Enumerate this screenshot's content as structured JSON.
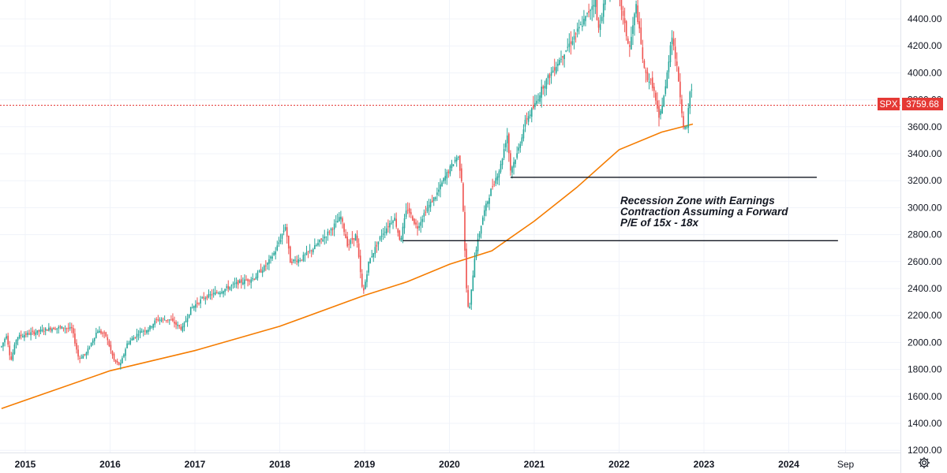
{
  "chart_data": {
    "type": "candlestick",
    "symbol": "SPX",
    "last_price": "3759.68",
    "ylim": [
      1150,
      4560
    ],
    "y_ticks": [
      "1200.00",
      "1400.00",
      "1600.00",
      "1800.00",
      "2000.00",
      "2200.00",
      "2400.00",
      "2600.00",
      "2800.00",
      "3000.00",
      "3200.00",
      "3400.00",
      "3600.00",
      "3800.00",
      "4000.00",
      "4200.00",
      "4400.00"
    ],
    "x_ticks": [
      {
        "label": "2015",
        "year": 2015.0
      },
      {
        "label": "2016",
        "year": 2016.0
      },
      {
        "label": "2017",
        "year": 2017.0
      },
      {
        "label": "2018",
        "year": 2018.0
      },
      {
        "label": "2019",
        "year": 2019.0
      },
      {
        "label": "2020",
        "year": 2020.0
      },
      {
        "label": "2021",
        "year": 2021.0
      },
      {
        "label": "2022",
        "year": 2022.0
      },
      {
        "label": "2023",
        "year": 2023.0
      },
      {
        "label": "2024",
        "year": 2024.0
      },
      {
        "label": "Sep",
        "year": 2024.67
      }
    ],
    "price_path": [
      [
        2014.72,
        1970
      ],
      [
        2014.78,
        2060
      ],
      [
        2014.83,
        1860
      ],
      [
        2014.9,
        2040
      ],
      [
        2015.0,
        2060
      ],
      [
        2015.15,
        2080
      ],
      [
        2015.3,
        2105
      ],
      [
        2015.45,
        2110
      ],
      [
        2015.55,
        2100
      ],
      [
        2015.63,
        1880
      ],
      [
        2015.72,
        1920
      ],
      [
        2015.85,
        2090
      ],
      [
        2015.95,
        2050
      ],
      [
        2016.05,
        1860
      ],
      [
        2016.12,
        1830
      ],
      [
        2016.2,
        1990
      ],
      [
        2016.35,
        2080
      ],
      [
        2016.45,
        2100
      ],
      [
        2016.55,
        2170
      ],
      [
        2016.7,
        2170
      ],
      [
        2016.85,
        2100
      ],
      [
        2016.95,
        2250
      ],
      [
        2017.1,
        2330
      ],
      [
        2017.3,
        2380
      ],
      [
        2017.5,
        2440
      ],
      [
        2017.7,
        2480
      ],
      [
        2017.85,
        2580
      ],
      [
        2017.95,
        2680
      ],
      [
        2018.07,
        2870
      ],
      [
        2018.12,
        2600
      ],
      [
        2018.25,
        2620
      ],
      [
        2018.4,
        2700
      ],
      [
        2018.55,
        2800
      ],
      [
        2018.72,
        2930
      ],
      [
        2018.8,
        2720
      ],
      [
        2018.9,
        2800
      ],
      [
        2018.98,
        2350
      ],
      [
        2019.05,
        2600
      ],
      [
        2019.2,
        2800
      ],
      [
        2019.35,
        2930
      ],
      [
        2019.42,
        2750
      ],
      [
        2019.5,
        3000
      ],
      [
        2019.62,
        2850
      ],
      [
        2019.72,
        2980
      ],
      [
        2019.85,
        3100
      ],
      [
        2019.95,
        3230
      ],
      [
        2020.1,
        3390
      ],
      [
        2020.15,
        3180
      ],
      [
        2020.2,
        2400
      ],
      [
        2020.23,
        2200
      ],
      [
        2020.3,
        2650
      ],
      [
        2020.4,
        2950
      ],
      [
        2020.5,
        3150
      ],
      [
        2020.6,
        3300
      ],
      [
        2020.68,
        3550
      ],
      [
        2020.72,
        3280
      ],
      [
        2020.8,
        3400
      ],
      [
        2020.9,
        3650
      ],
      [
        2021.0,
        3750
      ],
      [
        2021.1,
        3900
      ],
      [
        2021.3,
        4100
      ],
      [
        2021.45,
        4250
      ],
      [
        2021.6,
        4400
      ],
      [
        2021.72,
        4550
      ],
      [
        2021.75,
        4300
      ],
      [
        2021.85,
        4600
      ],
      [
        2021.95,
        4750
      ],
      [
        2022.05,
        4400
      ],
      [
        2022.12,
        4170
      ],
      [
        2022.2,
        4500
      ],
      [
        2022.3,
        4000
      ],
      [
        2022.4,
        3900
      ],
      [
        2022.47,
        3650
      ],
      [
        2022.55,
        3900
      ],
      [
        2022.62,
        4300
      ],
      [
        2022.7,
        3950
      ],
      [
        2022.76,
        3600
      ],
      [
        2022.8,
        3580
      ],
      [
        2022.83,
        3850
      ],
      [
        2022.87,
        3900
      ]
    ],
    "moving_average": {
      "color": "#f57c00",
      "points": [
        [
          2014.72,
          1510
        ],
        [
          2016.0,
          1790
        ],
        [
          2017.0,
          1940
        ],
        [
          2018.0,
          2120
        ],
        [
          2019.0,
          2350
        ],
        [
          2019.5,
          2450
        ],
        [
          2020.0,
          2580
        ],
        [
          2020.5,
          2680
        ],
        [
          2021.0,
          2900
        ],
        [
          2021.5,
          3150
        ],
        [
          2022.0,
          3430
        ],
        [
          2022.5,
          3560
        ],
        [
          2022.87,
          3620
        ]
      ]
    },
    "reference_lines": [
      {
        "level": 3225,
        "x_start": 2020.72,
        "x_end": 2024.33
      },
      {
        "level": 2755,
        "x_start": 2019.45,
        "x_end": 2024.58
      }
    ],
    "last_price_line": {
      "level": 3759.68,
      "color": "#e53935"
    },
    "annotation": [
      "Recession Zone with Earnings",
      "Contraction Assuming a Forward",
      "P/E of 15x - 18x"
    ],
    "colors": {
      "up": "#26a69a",
      "down": "#ef5350",
      "price_badge": "#e53935",
      "grid": "#f0f3fa",
      "ref_line": "#131722"
    },
    "grid": true
  },
  "icons": {
    "settings": "gear-icon"
  }
}
